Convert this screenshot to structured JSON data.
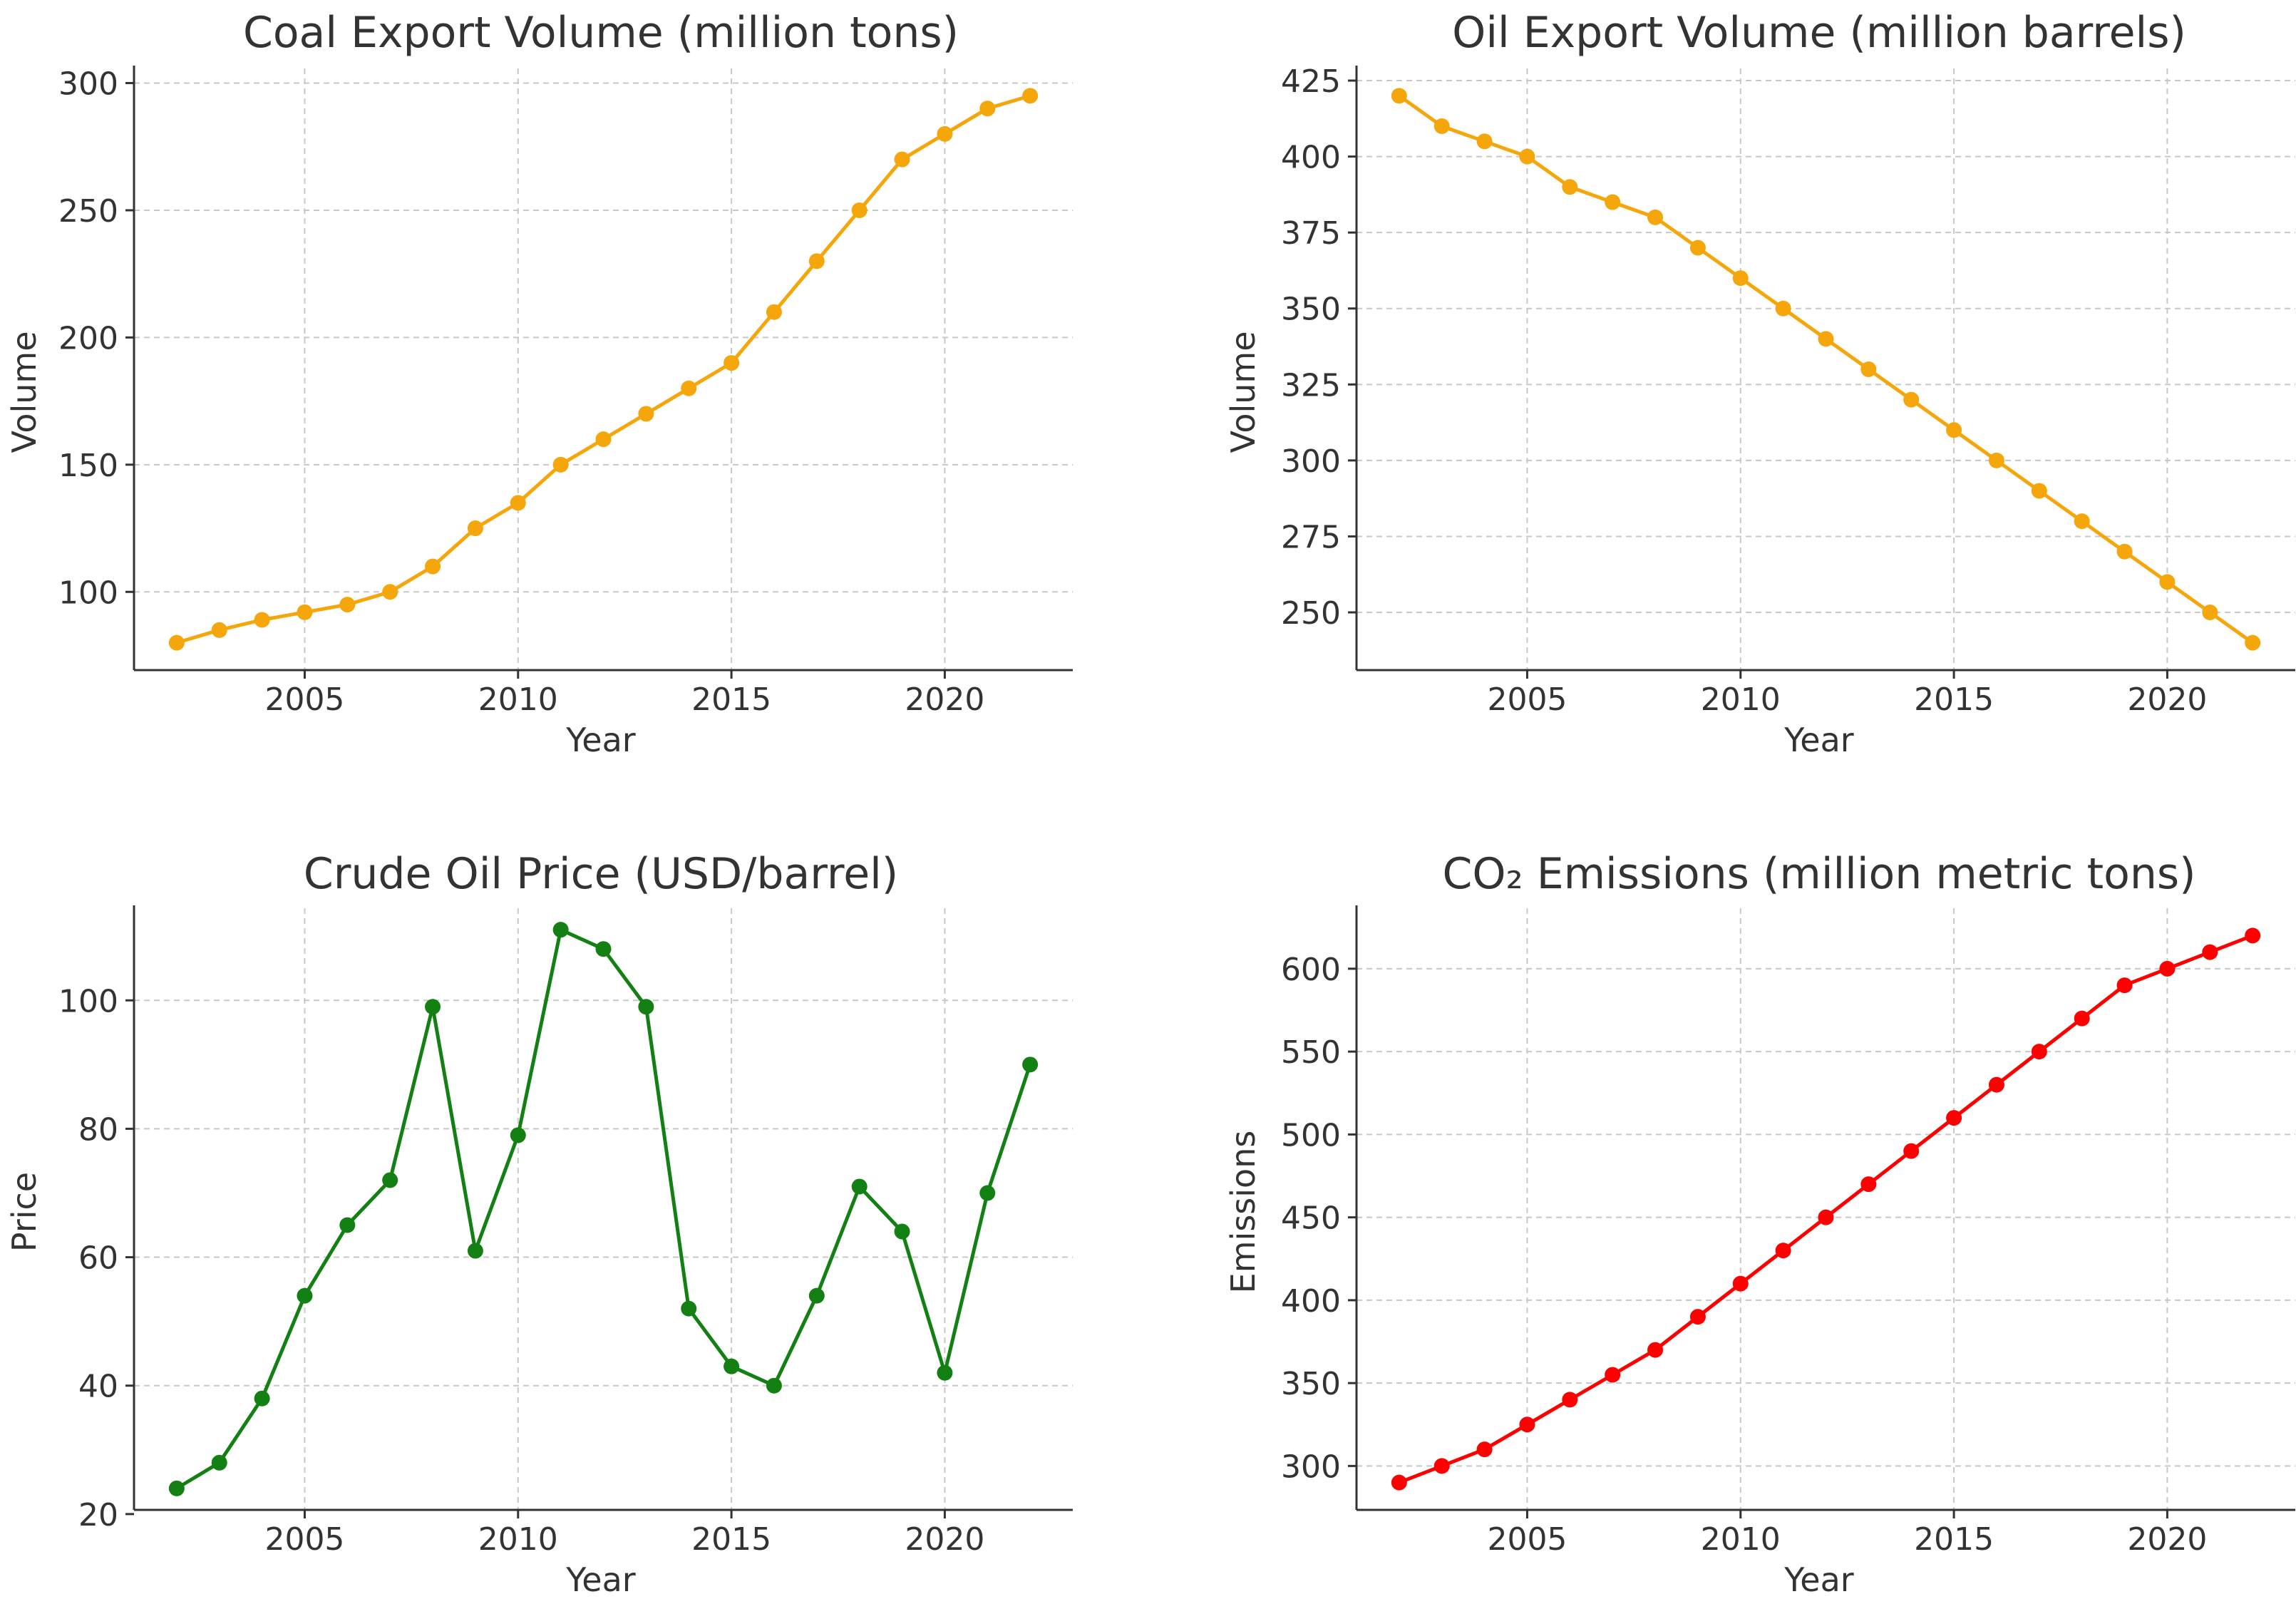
{
  "chart_data": [
    {
      "id": "coal",
      "type": "line",
      "title": "Coal Export Volume (million tons)",
      "xlabel": "Year",
      "ylabel": "Volume",
      "color": "#f5a60a",
      "x": [
        2002,
        2003,
        2004,
        2005,
        2006,
        2007,
        2008,
        2009,
        2010,
        2011,
        2012,
        2013,
        2014,
        2015,
        2016,
        2017,
        2018,
        2019,
        2020,
        2021,
        2022
      ],
      "values": [
        80,
        85,
        89,
        92,
        95,
        100,
        110,
        125,
        135,
        150,
        160,
        170,
        180,
        190,
        210,
        230,
        250,
        270,
        280,
        290,
        295
      ],
      "xlim": [
        2001,
        2023
      ],
      "ylim": [
        69.25,
        305.75
      ],
      "xticks": [
        2005,
        2010,
        2015,
        2020
      ],
      "xtick_labels": [
        "2005",
        "2010",
        "2015",
        "2020"
      ],
      "yticks": [
        100,
        150,
        200,
        250,
        300
      ],
      "ytick_labels": [
        "100",
        "150",
        "200",
        "250",
        "300"
      ],
      "grid": true
    },
    {
      "id": "oil-volume",
      "type": "line",
      "title": "Oil Export Volume (million barrels)",
      "xlabel": "Year",
      "ylabel": "Volume",
      "color": "#f5a60a",
      "x": [
        2002,
        2003,
        2004,
        2005,
        2006,
        2007,
        2008,
        2009,
        2010,
        2011,
        2012,
        2013,
        2014,
        2015,
        2016,
        2017,
        2018,
        2019,
        2020,
        2021,
        2022
      ],
      "values": [
        420,
        410,
        405,
        400,
        390,
        385,
        380,
        370,
        360,
        350,
        340,
        330,
        320,
        310,
        300,
        290,
        280,
        270,
        260,
        250,
        240
      ],
      "xlim": [
        2001,
        2023
      ],
      "ylim": [
        231,
        429
      ],
      "xticks": [
        2005,
        2010,
        2015,
        2020
      ],
      "xtick_labels": [
        "2005",
        "2010",
        "2015",
        "2020"
      ],
      "yticks": [
        250,
        275,
        300,
        325,
        350,
        375,
        400,
        425
      ],
      "ytick_labels": [
        "250",
        "275",
        "300",
        "325",
        "350",
        "375",
        "400",
        "425"
      ],
      "grid": true
    },
    {
      "id": "oil-price",
      "type": "line",
      "title": "Crude Oil Price (USD/barrel)",
      "xlabel": "Year",
      "ylabel": "Price",
      "color": "#138013",
      "x": [
        2002,
        2003,
        2004,
        2005,
        2006,
        2007,
        2008,
        2009,
        2010,
        2011,
        2012,
        2013,
        2014,
        2015,
        2016,
        2017,
        2018,
        2019,
        2020,
        2021,
        2022
      ],
      "values": [
        24,
        28,
        38,
        54,
        65,
        72,
        99,
        61,
        79,
        111,
        108,
        99,
        52,
        43,
        40,
        54,
        71,
        64,
        42,
        70,
        90
      ],
      "xlim": [
        2001,
        2023
      ],
      "ylim": [
        20.65,
        114.35
      ],
      "xticks": [
        2005,
        2010,
        2015,
        2020
      ],
      "xtick_labels": [
        "2005",
        "2010",
        "2015",
        "2020"
      ],
      "yticks": [
        20,
        40,
        60,
        80,
        100
      ],
      "ytick_labels": [
        "20",
        "40",
        "60",
        "80",
        "100"
      ],
      "grid": true
    },
    {
      "id": "co2",
      "type": "line",
      "title": "CO₂ Emissions (million metric tons)",
      "xlabel": "Year",
      "ylabel": "Emissions",
      "color": "#ff0000",
      "x": [
        2002,
        2003,
        2004,
        2005,
        2006,
        2007,
        2008,
        2009,
        2010,
        2011,
        2012,
        2013,
        2014,
        2015,
        2016,
        2017,
        2018,
        2019,
        2020,
        2021,
        2022
      ],
      "values": [
        290,
        300,
        310,
        325,
        340,
        355,
        370,
        390,
        410,
        430,
        450,
        470,
        490,
        510,
        530,
        550,
        570,
        590,
        600,
        610,
        620
      ],
      "xlim": [
        2001,
        2023
      ],
      "ylim": [
        273.5,
        636.5
      ],
      "xticks": [
        2005,
        2010,
        2015,
        2020
      ],
      "xtick_labels": [
        "2005",
        "2010",
        "2015",
        "2020"
      ],
      "yticks": [
        300,
        350,
        400,
        450,
        500,
        550,
        600
      ],
      "ytick_labels": [
        "300",
        "350",
        "400",
        "450",
        "500",
        "550",
        "600"
      ],
      "grid": true
    }
  ]
}
